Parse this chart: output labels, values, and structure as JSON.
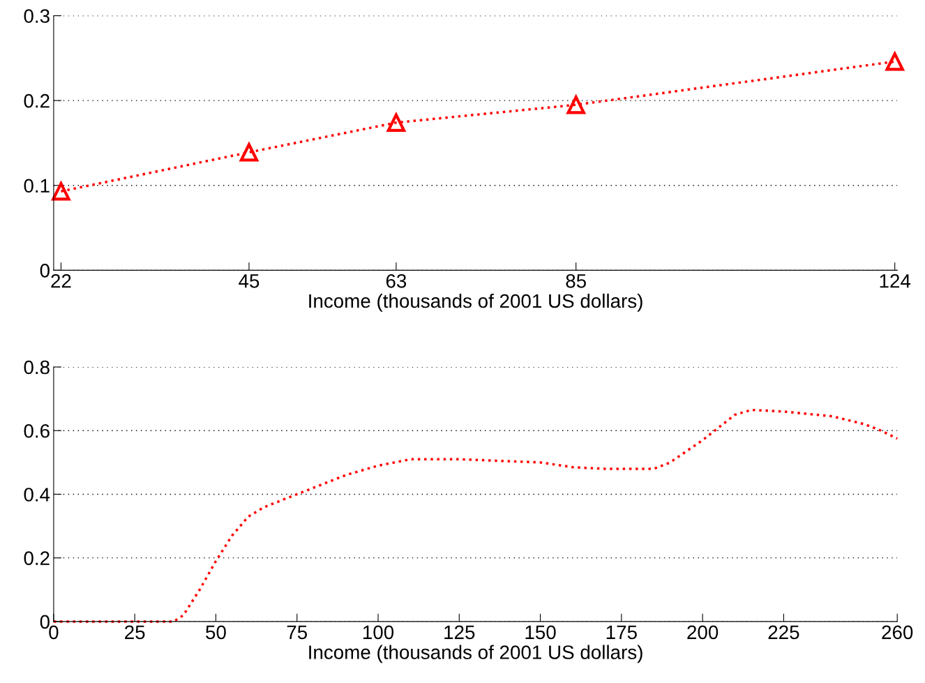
{
  "chart_data": [
    {
      "type": "line",
      "xlabel": "Income (thousands of 2001 US dollars)",
      "x": [
        22,
        45,
        63,
        85,
        124
      ],
      "series": [
        {
          "color": "#ff0000",
          "values": [
            0.093,
            0.139,
            0.174,
            0.195,
            0.246
          ]
        }
      ],
      "xlim": [
        21.1,
        124.3
      ],
      "xticks": [
        22,
        45,
        63,
        85,
        124
      ],
      "ylim": [
        0,
        0.3
      ],
      "yticks": [
        0,
        0.1,
        0.2,
        0.3
      ],
      "grid": "y",
      "marker": "triangle",
      "line_style": "dotted"
    },
    {
      "type": "line",
      "xlabel": "Income (thousands of 2001 US dollars)",
      "x": [
        0,
        10,
        20,
        30,
        37,
        40,
        45,
        50,
        55,
        60,
        65,
        70,
        75,
        90,
        100,
        110,
        125,
        150,
        160,
        170,
        185,
        190,
        200,
        210,
        215,
        225,
        240,
        250,
        255,
        260
      ],
      "series": [
        {
          "color": "#ff0000",
          "values": [
            0,
            0,
            0,
            0,
            0,
            0.02,
            0.1,
            0.19,
            0.27,
            0.33,
            0.36,
            0.38,
            0.4,
            0.46,
            0.49,
            0.51,
            0.51,
            0.5,
            0.485,
            0.48,
            0.48,
            0.5,
            0.57,
            0.65,
            0.665,
            0.66,
            0.645,
            0.62,
            0.6,
            0.575
          ]
        }
      ],
      "xlim": [
        0,
        260
      ],
      "xticks": [
        0,
        25,
        50,
        75,
        100,
        125,
        150,
        175,
        200,
        225,
        260
      ],
      "ylim": [
        0,
        0.8
      ],
      "yticks": [
        0,
        0.2,
        0.4,
        0.6,
        0.8
      ],
      "grid": "y",
      "marker": "none",
      "line_style": "dotted"
    }
  ]
}
